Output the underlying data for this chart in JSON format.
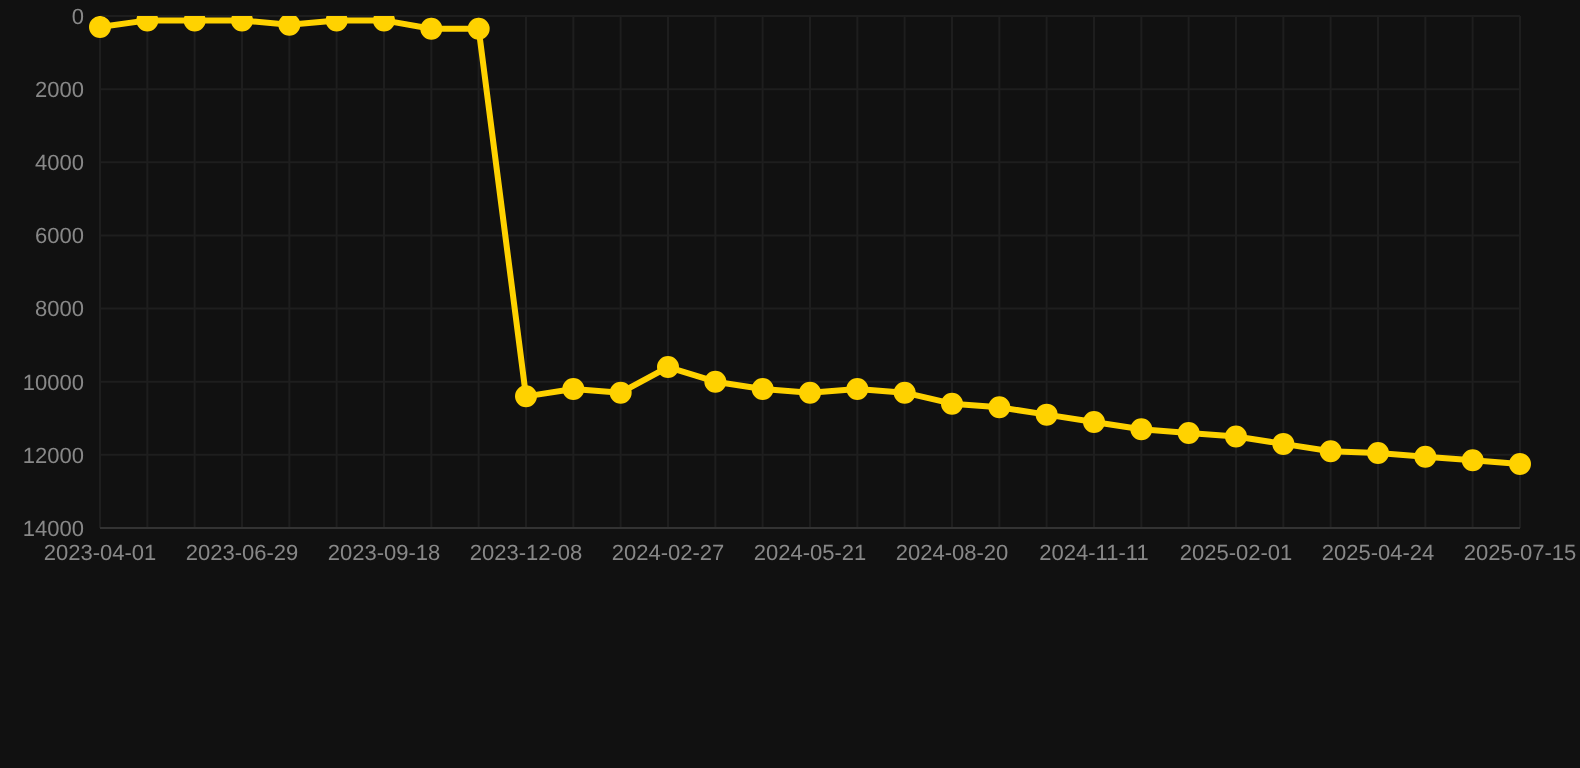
{
  "chart_data": {
    "type": "line",
    "categories": [
      "2023-04-01",
      null,
      null,
      "2023-06-29",
      null,
      null,
      "2023-09-18",
      null,
      null,
      "2023-12-08",
      null,
      null,
      "2024-02-27",
      null,
      null,
      "2024-05-21",
      null,
      null,
      "2024-08-20",
      null,
      null,
      "2024-11-11",
      null,
      null,
      "2025-02-01",
      null,
      null,
      "2025-04-24",
      null,
      null,
      "2025-07-15"
    ],
    "series": [
      {
        "color": "#ffd200",
        "values": [
          300,
          120,
          120,
          120,
          240,
          120,
          120,
          350,
          350,
          10400,
          10200,
          10300,
          9600,
          10000,
          10200,
          10300,
          10200,
          10300,
          10600,
          10700,
          10900,
          11100,
          11300,
          11400,
          11500,
          11700,
          11900,
          11950,
          12050,
          12150,
          12250
        ]
      }
    ],
    "ylim": [
      14000,
      0
    ],
    "yticks": [
      0,
      2000,
      4000,
      6000,
      8000,
      10000,
      12000,
      14000
    ],
    "grid": true,
    "marker": "circle",
    "line_style": "solid"
  }
}
